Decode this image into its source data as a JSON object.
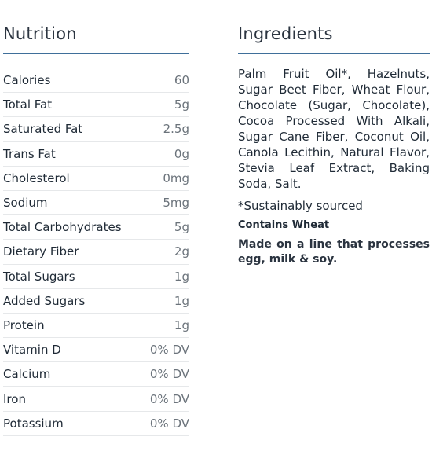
{
  "nutrition": {
    "title": "Nutrition",
    "rows": [
      {
        "name": "Calories",
        "value": "60"
      },
      {
        "name": "Total Fat",
        "value": "5g"
      },
      {
        "name": "Saturated Fat",
        "value": "2.5g"
      },
      {
        "name": "Trans Fat",
        "value": "0g"
      },
      {
        "name": "Cholesterol",
        "value": "0mg"
      },
      {
        "name": "Sodium",
        "value": "5mg"
      },
      {
        "name": "Total Carbohydrates",
        "value": "5g"
      },
      {
        "name": "Dietary Fiber",
        "value": "2g"
      },
      {
        "name": "Total Sugars",
        "value": "1g"
      },
      {
        "name": "Added Sugars",
        "value": "1g"
      },
      {
        "name": "Protein",
        "value": "1g"
      },
      {
        "name": "Vitamin D",
        "value": "0% DV"
      },
      {
        "name": "Calcium",
        "value": "0% DV"
      },
      {
        "name": "Iron",
        "value": "0% DV"
      },
      {
        "name": "Potassium",
        "value": "0% DV"
      }
    ]
  },
  "ingredients": {
    "title": "Ingredients",
    "text": "Palm Fruit Oil*, Hazelnuts, Sugar Beet Fiber, Wheat Flour, Chocolate (Sugar, Chocolate), Cocoa Processed With Alkali, Sugar Cane Fiber, Coconut Oil, Canola Lecithin, Natural Flavor, Stevia Leaf Extract, Baking Soda, Salt.",
    "note": "*Sustainably sourced",
    "allergen": "Contains Wheat",
    "facility": "Made on a line that processes egg, milk & soy."
  }
}
